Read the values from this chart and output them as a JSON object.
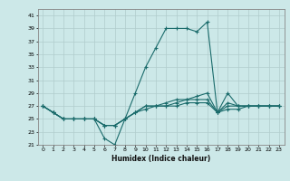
{
  "xlabel": "Humidex (Indice chaleur)",
  "background_color": "#cce8e8",
  "grid_color": "#b0cccc",
  "line_color": "#1a6b6b",
  "xlim": [
    -0.5,
    23.5
  ],
  "ylim": [
    21,
    42
  ],
  "yticks": [
    21,
    23,
    25,
    27,
    29,
    31,
    33,
    35,
    37,
    39,
    41
  ],
  "xticks": [
    0,
    1,
    2,
    3,
    4,
    5,
    6,
    7,
    8,
    9,
    10,
    11,
    12,
    13,
    14,
    15,
    16,
    17,
    18,
    19,
    20,
    21,
    22,
    23
  ],
  "series": [
    {
      "x": [
        0,
        1,
        2,
        3,
        4,
        5,
        6,
        7,
        8,
        9,
        10,
        11,
        12,
        13,
        14,
        15,
        16,
        17,
        18,
        19,
        20,
        21,
        22,
        23
      ],
      "y": [
        27,
        26,
        25,
        25,
        25,
        25,
        22,
        21,
        25,
        29,
        33,
        36,
        39,
        39,
        39,
        38.5,
        40,
        26,
        29,
        27,
        27,
        27,
        27,
        27
      ]
    },
    {
      "x": [
        0,
        1,
        2,
        3,
        4,
        5,
        6,
        7,
        8,
        9,
        10,
        11,
        12,
        13,
        14,
        15,
        16,
        17,
        18,
        19,
        20,
        21,
        22,
        23
      ],
      "y": [
        27,
        26,
        25,
        25,
        25,
        25,
        24,
        24,
        25,
        26,
        27,
        27,
        27.5,
        28,
        28,
        28.5,
        29,
        26,
        27.5,
        27,
        27,
        27,
        27,
        27
      ]
    },
    {
      "x": [
        0,
        1,
        2,
        3,
        4,
        5,
        6,
        7,
        8,
        9,
        10,
        11,
        12,
        13,
        14,
        15,
        16,
        17,
        18,
        19,
        20,
        21,
        22,
        23
      ],
      "y": [
        27,
        26,
        25,
        25,
        25,
        25,
        24,
        24,
        25,
        26,
        27,
        27,
        27,
        27.5,
        28,
        28,
        28,
        26,
        27,
        27,
        27,
        27,
        27,
        27
      ]
    },
    {
      "x": [
        0,
        1,
        2,
        3,
        4,
        5,
        6,
        7,
        8,
        9,
        10,
        11,
        12,
        13,
        14,
        15,
        16,
        17,
        18,
        19,
        20,
        21,
        22,
        23
      ],
      "y": [
        27,
        26,
        25,
        25,
        25,
        25,
        24,
        24,
        25,
        26,
        26.5,
        27,
        27,
        27,
        27.5,
        27.5,
        27.5,
        26,
        26.5,
        26.5,
        27,
        27,
        27,
        27
      ]
    }
  ]
}
